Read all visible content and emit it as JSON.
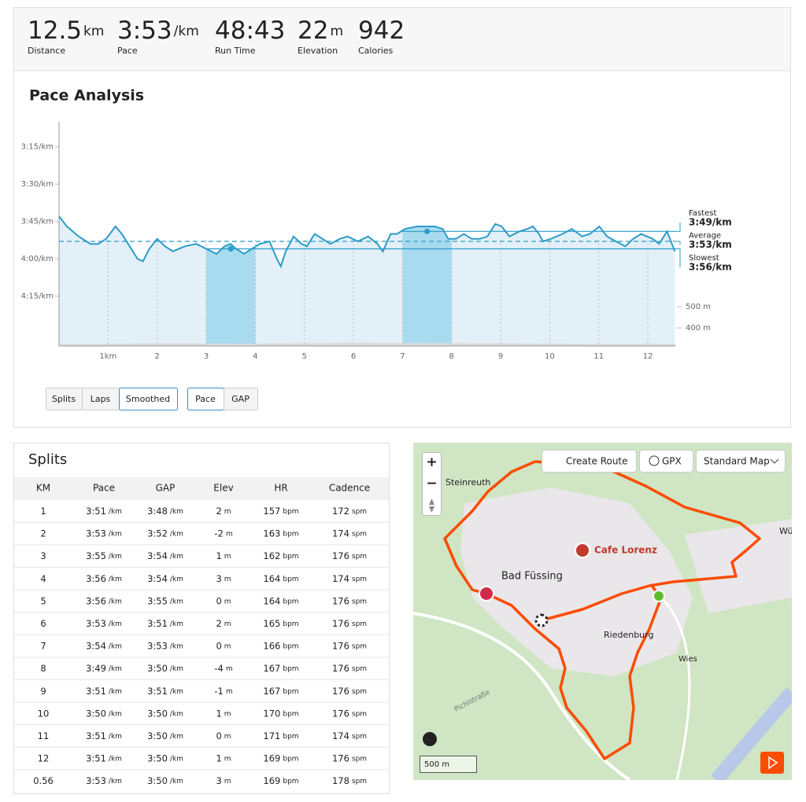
{
  "stats": [
    {
      "value": "12.5",
      "unit": "km",
      "label": "Distance"
    },
    {
      "value": "3:53",
      "unit": "/km",
      "label": "Pace"
    },
    {
      "value": "48:43",
      "label": "Run Time"
    },
    {
      "value": "22",
      "unit": "m",
      "label": "Elevation"
    },
    {
      "value": "942",
      "label": "Calories"
    }
  ],
  "pace_analysis": {
    "type": "line",
    "title": "Pace Analysis",
    "color": "#2b9bc8",
    "fill": "#e3f0f7",
    "highlight_color": "#a8dbef",
    "x": [
      0,
      0.16,
      0.4,
      0.64,
      0.8,
      0.96,
      1.15,
      1.28,
      1.44,
      1.6,
      1.71,
      1.84,
      2.0,
      2.16,
      2.32,
      2.56,
      2.8,
      3.0,
      3.21,
      3.37,
      3.49,
      3.61,
      3.77,
      3.93,
      4.09,
      4.29,
      4.44,
      4.52,
      4.62,
      4.78,
      4.94,
      5.05,
      5.21,
      5.37,
      5.53,
      5.72,
      5.88,
      6.09,
      6.3,
      6.49,
      6.6,
      6.76,
      6.89,
      7.05,
      7.29,
      7.48,
      7.66,
      7.82,
      7.93,
      8.09,
      8.25,
      8.41,
      8.57,
      8.73,
      8.89,
      9.02,
      9.18,
      9.38,
      9.54,
      9.66,
      9.78,
      9.86,
      10.02,
      10.26,
      10.45,
      10.66,
      10.82,
      11.01,
      11.17,
      11.35,
      11.54,
      11.7,
      11.86,
      12.1,
      12.23,
      12.39,
      12.55
    ],
    "values": [
      223,
      227,
      231,
      234,
      234,
      232,
      227,
      230,
      235,
      240,
      241,
      236,
      232,
      235,
      237,
      235,
      234,
      236,
      238,
      235,
      234,
      236,
      238,
      236,
      234,
      233,
      240,
      243,
      237,
      231,
      234,
      235,
      230,
      232,
      234,
      232,
      231,
      233,
      231,
      234,
      237,
      230,
      230,
      228,
      227,
      227,
      227,
      228,
      232,
      232,
      230,
      232,
      232,
      231,
      226,
      227,
      231,
      229,
      228,
      227,
      230,
      233,
      232,
      230,
      228,
      231,
      230,
      227,
      231,
      233,
      235,
      232,
      230,
      232,
      234,
      229,
      237
    ],
    "xlim": [
      0,
      12.56
    ],
    "xticks": [
      {
        "value": 1,
        "label": "1km"
      },
      2,
      3,
      4,
      5,
      6,
      7,
      8,
      9,
      10,
      11,
      12
    ],
    "ylim": [
      185,
      275
    ],
    "y_inverted": true,
    "yticks": [
      {
        "value": 195,
        "label": "3:15/km"
      },
      {
        "value": 210,
        "label": "3:30/km"
      },
      {
        "value": 225,
        "label": "3:45/km"
      },
      {
        "value": 240,
        "label": "4:00/km"
      },
      {
        "value": 255,
        "label": "4:15/km"
      }
    ],
    "markers": [
      {
        "label": "Fastest",
        "value": 229,
        "value_label": "3:49/km",
        "from": 7
      },
      {
        "label": "Average",
        "value": 233,
        "value_label": "3:53/km",
        "from": 0,
        "dashed": true
      },
      {
        "label": "Slowest",
        "value": 236,
        "value_label": "3:56/km",
        "from": 3
      }
    ],
    "highlights": [
      {
        "start": 3,
        "end": 4,
        "dot": 3.5,
        "pace": 236
      },
      {
        "start": 7,
        "end": 8,
        "dot": 7.5,
        "pace": 229
      }
    ],
    "elevation": {
      "color": "#dcdcdc",
      "x": [
        0,
        2,
        4,
        6,
        8,
        10,
        12.56
      ],
      "values": [
        325,
        327,
        326,
        330,
        328,
        326,
        325
      ],
      "y2lim": [
        315,
        1370
      ],
      "y2ticks": [
        {
          "value": 500,
          "label": "500 m"
        },
        {
          "value": 400,
          "label": "400 m"
        }
      ]
    }
  },
  "controls": {
    "view": [
      "Splits",
      "Laps",
      "Smoothed"
    ],
    "active_view": 2,
    "metric": [
      "Pace",
      "GAP"
    ],
    "active_metric": 0
  },
  "splits": {
    "title": "Splits",
    "columns": [
      "KM",
      "Pace",
      "GAP",
      "Elev",
      "HR",
      "Cadence"
    ],
    "units": [
      "/km",
      "/km",
      "m",
      "bpm",
      "spm"
    ],
    "rows": [
      [
        "1",
        "3:51",
        "3:48",
        "2",
        "157",
        "172"
      ],
      [
        "2",
        "3:53",
        "3:52",
        "-2",
        "163",
        "174"
      ],
      [
        "3",
        "3:55",
        "3:54",
        "1",
        "162",
        "176"
      ],
      [
        "4",
        "3:56",
        "3:54",
        "3",
        "164",
        "174"
      ],
      [
        "5",
        "3:56",
        "3:55",
        "0",
        "164",
        "176"
      ],
      [
        "6",
        "3:53",
        "3:51",
        "2",
        "165",
        "176"
      ],
      [
        "7",
        "3:54",
        "3:53",
        "0",
        "166",
        "176"
      ],
      [
        "8",
        "3:49",
        "3:50",
        "-4",
        "167",
        "176"
      ],
      [
        "9",
        "3:51",
        "3:51",
        "-1",
        "167",
        "176"
      ],
      [
        "10",
        "3:50",
        "3:50",
        "1",
        "170",
        "176"
      ],
      [
        "11",
        "3:51",
        "3:50",
        "0",
        "171",
        "174"
      ],
      [
        "12",
        "3:51",
        "3:50",
        "1",
        "169",
        "176"
      ],
      [
        "0.56",
        "3:53",
        "3:50",
        "3",
        "169",
        "178"
      ]
    ]
  },
  "map": {
    "buttons": [
      "Create Route",
      "GPX",
      "Standard Map"
    ],
    "zoom": [
      "+",
      "−"
    ],
    "places": [
      "Steinreuth",
      "Bad Füssing",
      "Cafe Lorenz",
      "Riedenburg",
      "Wies",
      "Pichlstraße",
      "Wü"
    ],
    "scale": "500 m"
  }
}
